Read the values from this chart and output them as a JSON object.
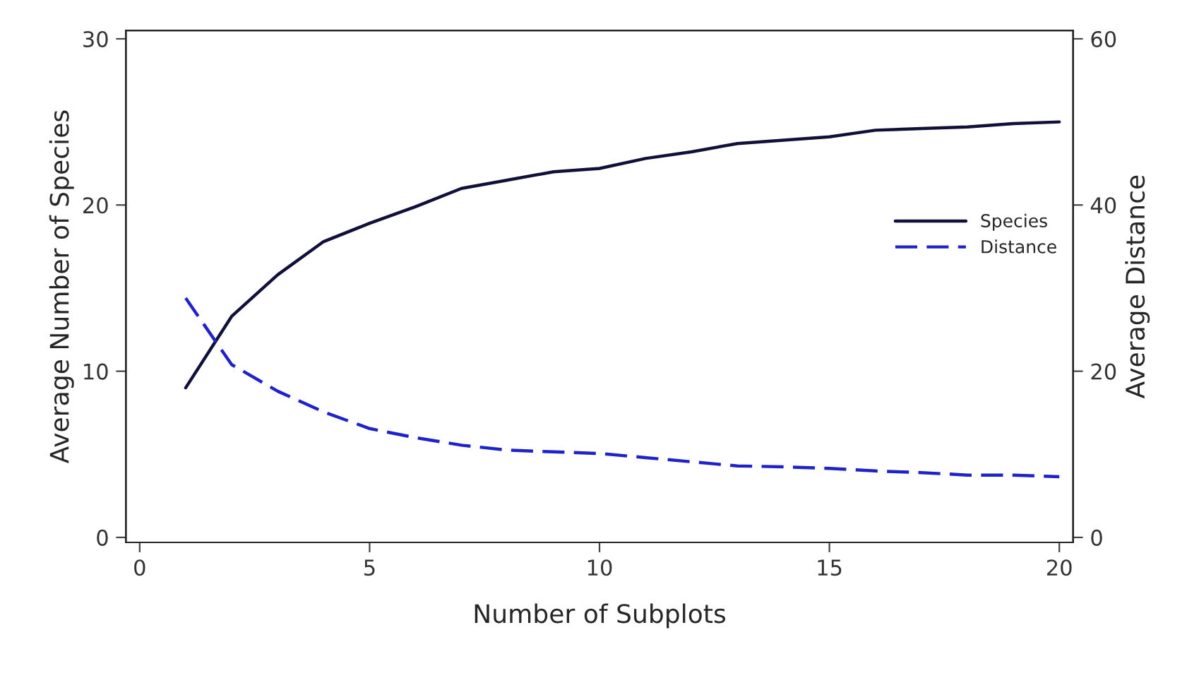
{
  "chart_data": {
    "type": "line",
    "xlabel": "Number of Subplots",
    "ylabel": "Average Number of Species",
    "y2label": "Average Distance",
    "x": [
      1,
      2,
      3,
      4,
      5,
      6,
      7,
      8,
      9,
      10,
      11,
      12,
      13,
      14,
      15,
      16,
      17,
      18,
      19,
      20
    ],
    "series": [
      {
        "name": "Species",
        "color": "#10103a",
        "line_style": "solid",
        "values": [
          9,
          13.3,
          15.8,
          17.8,
          18.9,
          19.9,
          21,
          21.5,
          22,
          22.2,
          22.8,
          23.2,
          23.7,
          23.9,
          24.1,
          24.5,
          24.6,
          24.7,
          24.9,
          25
        ]
      },
      {
        "name": "Distance",
        "color": "#1f22c8",
        "line_style": "dashed",
        "axis": "y2",
        "values": [
          28.8,
          20.8,
          17.6,
          15.1,
          13.1,
          12,
          11.1,
          10.5,
          10.3,
          10.1,
          9.6,
          9.1,
          8.6,
          8.5,
          8.3,
          8,
          7.8,
          7.5,
          7.5,
          7.3
        ]
      }
    ],
    "xlim": [
      -0.3,
      20.3
    ],
    "xticks": [
      0,
      5,
      10,
      15,
      20
    ],
    "ylim": [
      -0.3,
      30.5
    ],
    "yticks": [
      0,
      10,
      20,
      30
    ],
    "y2lim": [
      -0.6,
      61
    ],
    "y2ticks": [
      0,
      20,
      40,
      60
    ],
    "grid": false,
    "legend": "right",
    "marker": "none"
  }
}
